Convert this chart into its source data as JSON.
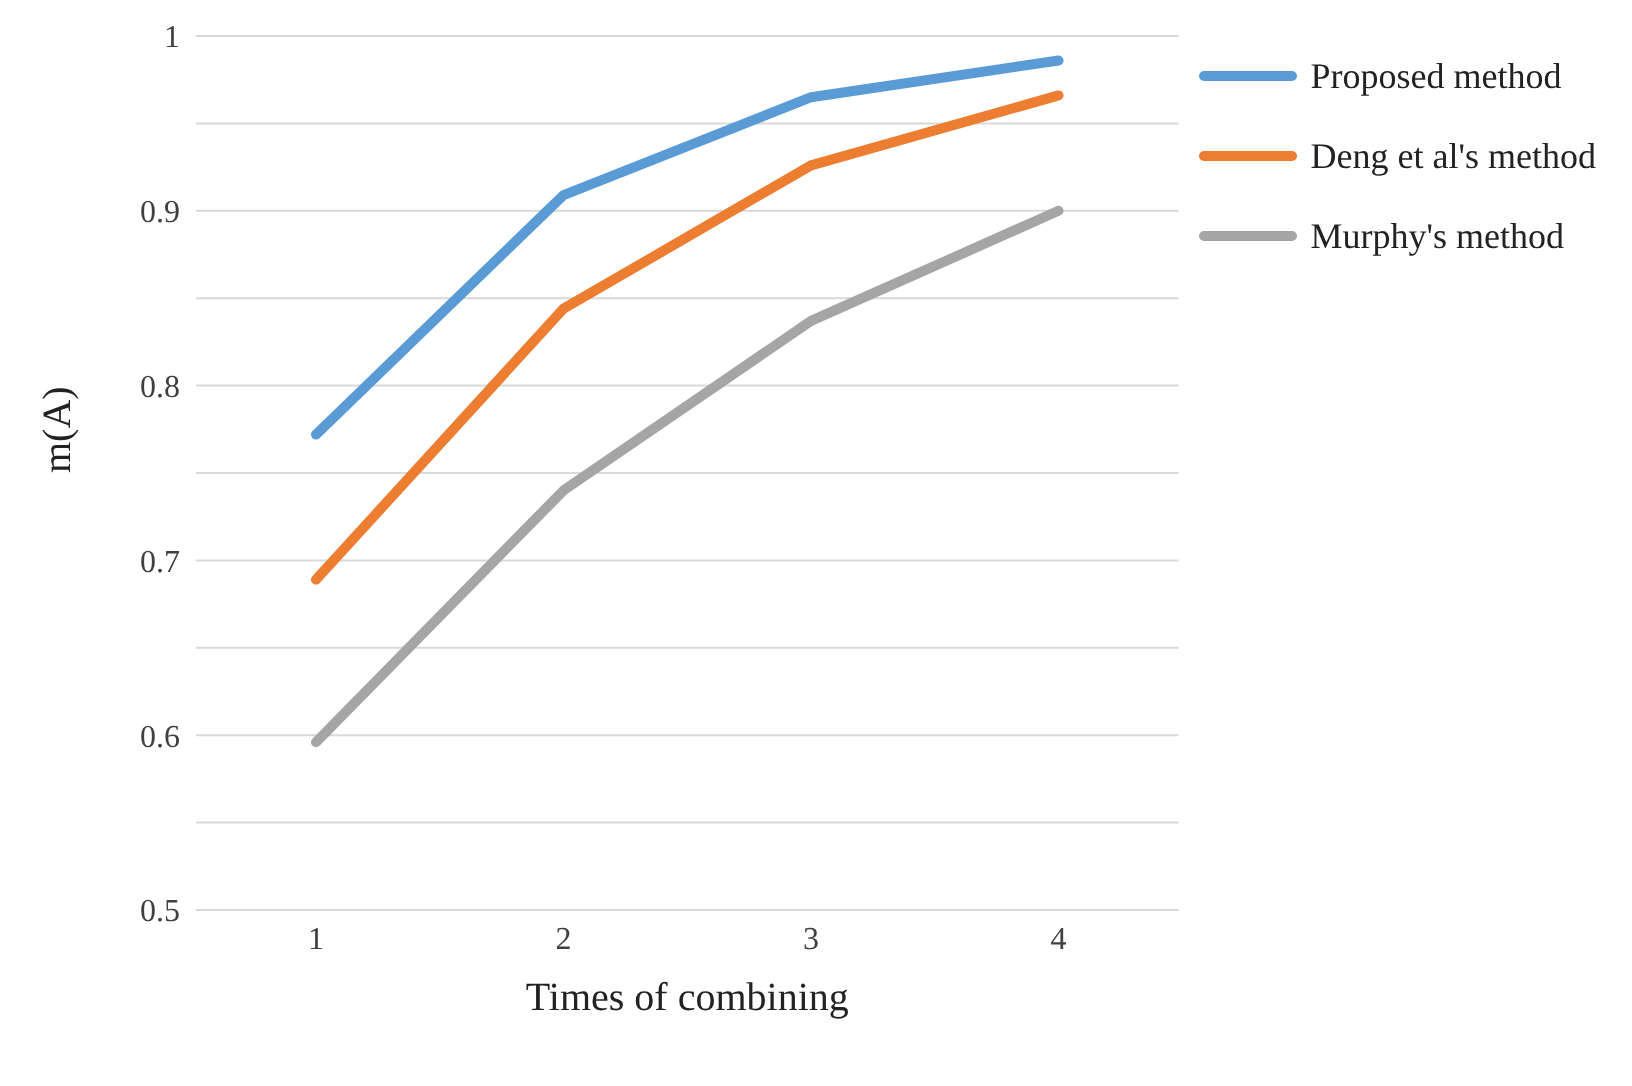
{
  "chart_data": {
    "type": "line",
    "xlabel": "Times of combining",
    "ylabel": "m(A)",
    "categories": [
      "1",
      "2",
      "3",
      "4"
    ],
    "series": [
      {
        "name": "Proposed method",
        "color": "#5b9bd5",
        "values": [
          0.772,
          0.909,
          0.965,
          0.986
        ]
      },
      {
        "name": "Deng et al's method",
        "color": "#ed7d31",
        "values": [
          0.689,
          0.844,
          0.926,
          0.966
        ]
      },
      {
        "name": "Murphy's method",
        "color": "#a5a5a5",
        "values": [
          0.596,
          0.74,
          0.837,
          0.9
        ]
      }
    ],
    "ylim": [
      0.5,
      1
    ],
    "yticks": [
      0.5,
      {
        "value": 0.55,
        "label": null
      },
      0.6,
      {
        "value": 0.65,
        "label": null
      },
      0.7,
      {
        "value": 0.75,
        "label": null
      },
      0.8,
      {
        "value": 0.85,
        "label": null
      },
      0.9,
      {
        "value": 0.95,
        "label": null
      },
      1
    ],
    "grid": "y",
    "legend": "top right",
    "marker": "none",
    "line_style": "solid"
  }
}
